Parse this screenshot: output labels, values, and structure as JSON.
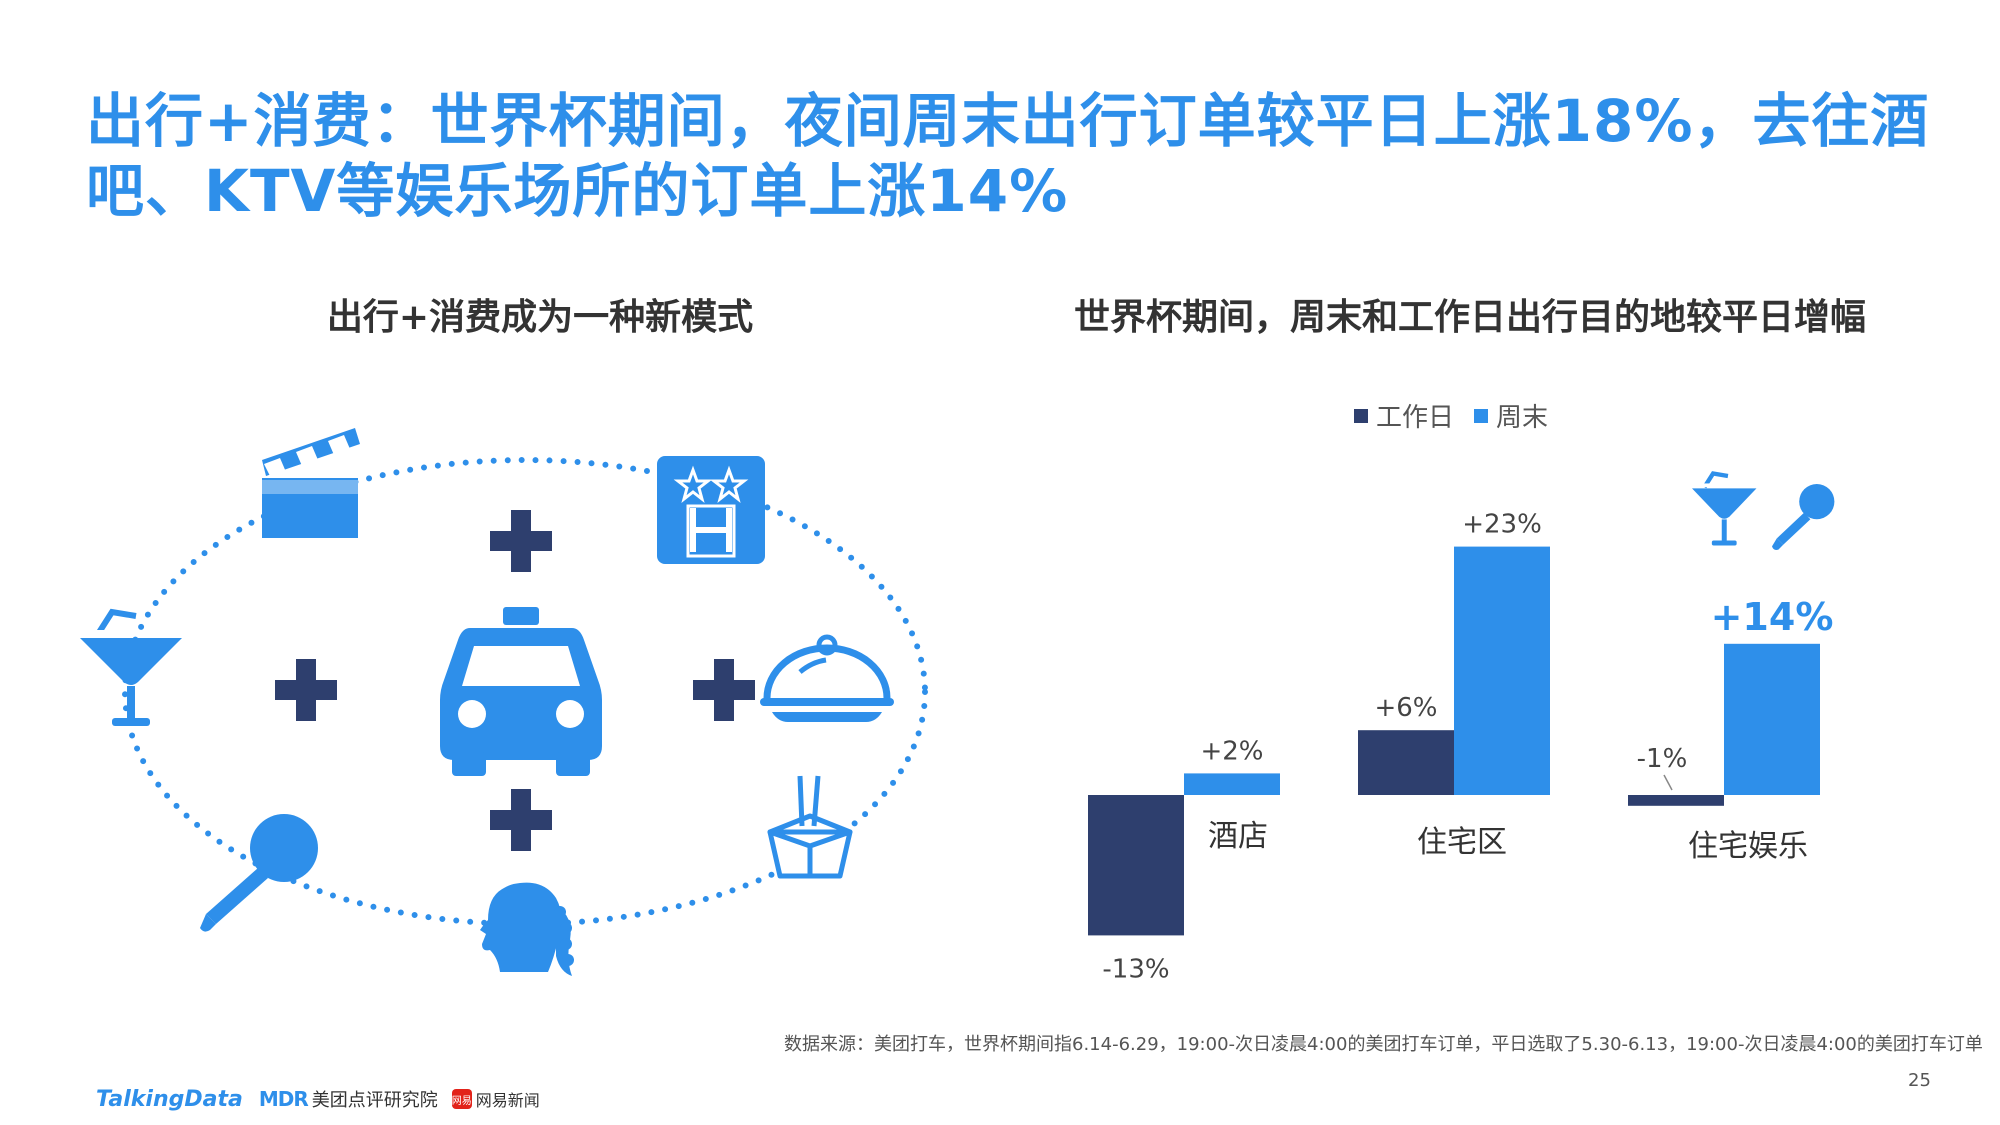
{
  "title": "出行+消费：世界杯期间，夜间周末出行订单较平日上涨18%，去往酒吧、KTV等娱乐场所的订单上涨14%",
  "left_section": {
    "title": "出行+消费成为一种新模式",
    "icons": [
      "clapperboard-icon",
      "hotel-icon",
      "cocktail-icon",
      "taxi-icon",
      "food-cloche-icon",
      "microphone-icon",
      "woman-head-icon",
      "takeout-box-icon",
      "plus-icon"
    ]
  },
  "right_section": {
    "title": "世界杯期间，周末和工作日出行目的地较平日增幅"
  },
  "chart_data": {
    "type": "bar",
    "title": "世界杯期间，周末和工作日出行目的地较平日增幅",
    "categories": [
      "酒店",
      "住宅区",
      "住宅娱乐"
    ],
    "series": [
      {
        "name": "工作日",
        "values": [
          -13,
          6,
          -1
        ],
        "labels": [
          "-13%",
          "+6%",
          "-1%"
        ],
        "color": "#2e3f6e"
      },
      {
        "name": "周末",
        "values": [
          2,
          23,
          14
        ],
        "labels": [
          "+2%",
          "+23%",
          "+14%"
        ],
        "color": "#2e8fea"
      }
    ],
    "legend_position": "top",
    "grid": false,
    "ylim": [
      -13,
      23
    ]
  },
  "footer": {
    "source": "数据来源：美团打车，世界杯期间指6.14-6.29，19:00-次日凌晨4:00的美团打车订单，平日选取了5.30-6.13，19:00-次日凌晨4:00的美团打车订单",
    "page_number": "25",
    "logos": {
      "talkingdata": "TalkingData",
      "mdr": "MDR",
      "dianping": "美团点评研究院",
      "wangyi_icon": "网易",
      "wangyi": "网易新闻"
    }
  },
  "colors": {
    "title_blue": "#2e8fea",
    "navy": "#2e3f6e",
    "icon_blue": "#2e8fea"
  }
}
